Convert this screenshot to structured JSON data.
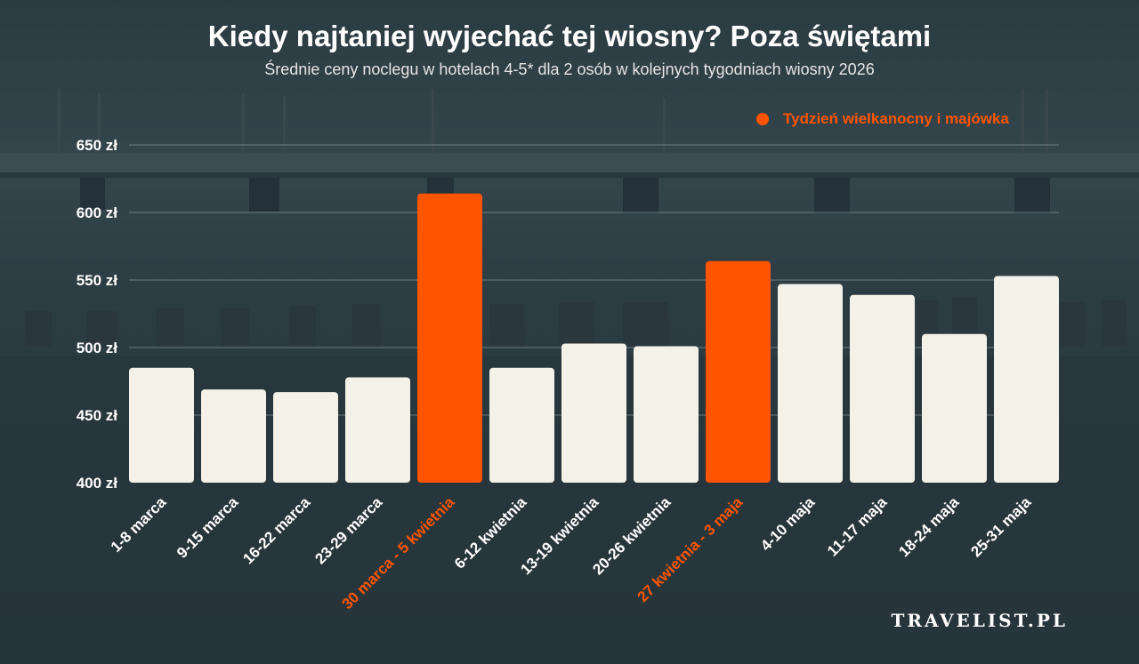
{
  "header": {
    "title": "Kiedy najtaniej wyjechać tej wiosny? Poza świętami",
    "subtitle": "Średnie ceny noclegu w hotelach 4-5* dla 2 osób w kolejnych tygodniach wiosny 2026"
  },
  "legend": {
    "label": "Tydzień wielkanocny i majówka",
    "color": "#ff5500"
  },
  "brand": "TRAVELIST.PL",
  "colors": {
    "bar_default": "#f4f2e8",
    "bar_highlight": "#ff5500",
    "label_default": "#ffffff",
    "label_highlight": "#ff5500"
  },
  "chart_data": {
    "type": "bar",
    "title": "Kiedy najtaniej wyjechać tej wiosny? Poza świętami",
    "subtitle": "Średnie ceny noclegu w hotelach 4-5* dla 2 osób w kolejnych tygodniach wiosny 2026",
    "xlabel": "",
    "ylabel": "",
    "ylim": [
      400,
      650
    ],
    "yticks": [
      400,
      450,
      500,
      550,
      600,
      650
    ],
    "ytick_labels": [
      "400 zł",
      "450 zł",
      "500 zł",
      "550 zł",
      "600 zł",
      "650 zł"
    ],
    "grid": true,
    "legend_position": "top-right",
    "categories": [
      "1-8 marca",
      "9-15 marca",
      "16-22 marca",
      "23-29 marca",
      "30 marca - 5 kwietnia",
      "6-12 kwietnia",
      "13-19 kwietnia",
      "20-26 kwietnia",
      "27 kwietnia - 3 maja",
      "4-10 maja",
      "11-17 maja",
      "18-24 maja",
      "25-31 maja"
    ],
    "values": [
      485,
      469,
      467,
      478,
      614,
      485,
      503,
      501,
      564,
      547,
      539,
      510,
      553
    ],
    "highlighted": [
      false,
      false,
      false,
      false,
      true,
      false,
      false,
      false,
      true,
      false,
      false,
      false,
      false
    ]
  }
}
